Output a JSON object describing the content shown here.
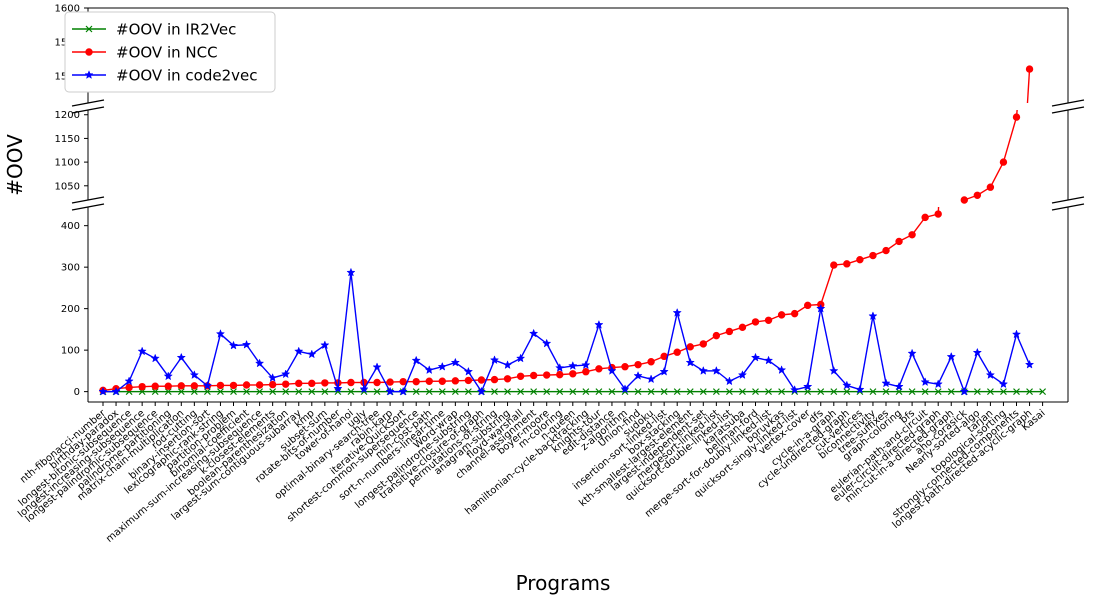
{
  "chart_data": {
    "type": "line",
    "ylabel": "#OOV",
    "xlabel": "Programs",
    "legend_position": "top-left",
    "grid": false,
    "y_axis_broken": true,
    "ylim_segments": [
      [
        1460,
        1600
      ],
      [
        1020,
        1210
      ],
      [
        -25,
        445
      ]
    ],
    "yticks": [
      [
        1500,
        1550,
        1600
      ],
      [
        1050,
        1100,
        1150,
        1200
      ],
      [
        0,
        100,
        200,
        300,
        400
      ]
    ],
    "categories": [
      "nth-fibonacci-number",
      "birthday-paradox",
      "longest-bitonic-subsequence",
      "longest-increasing-subsequence",
      "longest-palindromic-subsequence",
      "palindrome-partitioning",
      "matrix-chain-multiplication",
      "rod-cutting",
      "binary-insertion-sort",
      "lexicographic-rank-string",
      "partition-problem",
      "binomial-coefficient",
      "maximum-sum-increasing-subsequence",
      "k-closest-elements",
      "boolean-parenthesization",
      "largest-sum-contiguous-subarray",
      "kmp",
      "subset-sum",
      "rotate-bits-of-number",
      "tower-of-hanoi",
      "ugly",
      "optimal-binary-search-tree",
      "rabin-karp",
      "iterative-QuickSort",
      "shortest-common-supersequence",
      "min-cost-path",
      "sort-n-numbers-linear-time",
      "Word-wrap",
      "longest-palindrome-substring",
      "transitive-closure-of-graph",
      "permutations-of-string",
      "anagram-substring",
      "floyd-warshall",
      "channel-assignment",
      "boyer-moore",
      "m-coloring",
      "n-queen",
      "hamiltonian-cycle-backtracking",
      "knights-tour",
      "edit-distance",
      "z-algorithm",
      "Union-find",
      "sudoku",
      "insertion-sort-linked-list",
      "box-stacking",
      "kth-smallest-largest-element",
      "largest-independent-set",
      "mergesort-linked-list",
      "quicksort-double-linked-list",
      "karatsuba",
      "bellman-ford",
      "merge-sort-for-doubly-linked-list",
      "boruvkas",
      "quicksort-singly-linked-list",
      "vertex-cover",
      "dfs",
      "cycle-in-a-graph",
      "cycle-undirected-graph",
      "cut-vertices",
      "biconnectivity",
      "tree-suffixes",
      "graph-coloring",
      "bfs",
      "eulerian-path-and-circuit",
      "euler-circuit-directed-graph",
      "min-cut-in-a-directed-graph",
      "aho-corasick",
      "Nearly-sorted-algo",
      "tarjan",
      "topological-sorting",
      "strongly-connected-components",
      "longest-path-directed-acyclic-graph",
      "Kasai"
    ],
    "series": [
      {
        "name": "#OOV in IR2Vec",
        "color": "#008000",
        "marker": "x",
        "values": [
          0,
          0,
          0,
          0,
          0,
          0,
          0,
          0,
          0,
          0,
          0,
          0,
          0,
          0,
          0,
          0,
          0,
          0,
          0,
          0,
          0,
          0,
          0,
          0,
          0,
          0,
          0,
          0,
          0,
          0,
          0,
          0,
          0,
          0,
          0,
          0,
          0,
          0,
          0,
          0,
          0,
          0,
          0,
          0,
          0,
          0,
          0,
          0,
          0,
          0,
          0,
          0,
          0,
          0,
          0,
          0,
          0,
          0,
          0,
          0,
          0,
          0,
          0,
          0,
          0,
          0,
          0,
          0,
          0,
          0,
          0,
          0,
          0
        ]
      },
      {
        "name": "#OOV in NCC",
        "color": "#ff0000",
        "marker": "o",
        "values": [
          3,
          7,
          10,
          12,
          13,
          13,
          14,
          14,
          14,
          15,
          15,
          16,
          16,
          17,
          18,
          20,
          20,
          21,
          21,
          22,
          22,
          22,
          23,
          24,
          24,
          25,
          25,
          26,
          27,
          28,
          29,
          31,
          37,
          39,
          40,
          41,
          43,
          48,
          55,
          58,
          60,
          65,
          72,
          85,
          95,
          108,
          115,
          135,
          145,
          155,
          168,
          172,
          185,
          188,
          208,
          210,
          305,
          308,
          318,
          328,
          340,
          362,
          378,
          420,
          428,
          1015,
          1020,
          1030,
          1047,
          1100,
          1195,
          1510,
          null
        ]
      },
      {
        "name": "#OOV in code2vec",
        "color": "#0000ff",
        "marker": "*",
        "values": [
          0,
          0,
          25,
          97,
          80,
          37,
          82,
          40,
          14,
          139,
          111,
          113,
          68,
          33,
          42,
          97,
          90,
          112,
          7,
          287,
          6,
          59,
          0,
          0,
          75,
          52,
          60,
          70,
          48,
          0,
          76,
          64,
          80,
          140,
          116,
          57,
          62,
          64,
          161,
          50,
          6,
          38,
          30,
          48,
          190,
          70,
          50,
          50,
          25,
          40,
          82,
          75,
          52,
          4,
          12,
          200,
          50,
          15,
          5,
          182,
          20,
          12,
          92,
          23,
          18,
          84,
          0,
          94,
          40,
          18,
          138,
          65,
          null
        ]
      }
    ]
  }
}
